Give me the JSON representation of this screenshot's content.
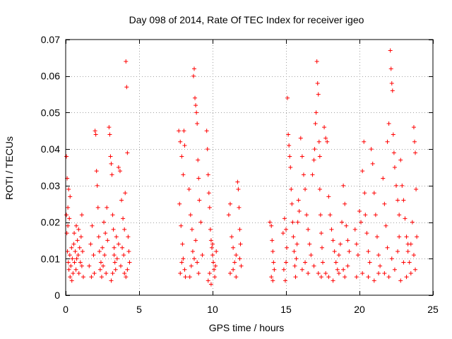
{
  "chart_data": {
    "type": "scatter",
    "title": "Day 098 of 2014, Rate Of TEC Index for receiver igeo",
    "xlabel": "GPS time / hours",
    "ylabel": "ROTI / TECUs",
    "xlim": [
      0,
      25
    ],
    "ylim": [
      0,
      0.07
    ],
    "x_ticks": [
      0,
      5,
      10,
      15,
      20,
      25
    ],
    "y_ticks": [
      0,
      0.01,
      0.02,
      0.03,
      0.04,
      0.05,
      0.06,
      0.07
    ],
    "grid": true,
    "marker": "+",
    "marker_color": "#ff0000",
    "series": [
      {
        "name": "ROTI",
        "points": [
          [
            0.05,
            0.038
          ],
          [
            0.1,
            0.032
          ],
          [
            0.15,
            0.024
          ],
          [
            0.2,
            0.029
          ],
          [
            0.25,
            0.021
          ],
          [
            0.3,
            0.027
          ],
          [
            0.08,
            0.017
          ],
          [
            0.12,
            0.012
          ],
          [
            0.18,
            0.009
          ],
          [
            0.22,
            0.007
          ],
          [
            0.28,
            0.011
          ],
          [
            0.35,
            0.008
          ],
          [
            0.4,
            0.013
          ],
          [
            0.45,
            0.01
          ],
          [
            0.5,
            0.006
          ],
          [
            0.55,
            0.014
          ],
          [
            0.6,
            0.009
          ],
          [
            0.65,
            0.012
          ],
          [
            0.7,
            0.007
          ],
          [
            0.75,
            0.01
          ],
          [
            0.8,
            0.015
          ],
          [
            0.85,
            0.011
          ],
          [
            0.9,
            0.006
          ],
          [
            0.95,
            0.013
          ],
          [
            1.0,
            0.009
          ],
          [
            1.05,
            0.016
          ],
          [
            1.1,
            0.008
          ],
          [
            1.15,
            0.012
          ],
          [
            1.2,
            0.005
          ],
          [
            0.3,
            0.005
          ],
          [
            0.42,
            0.004
          ],
          [
            0.58,
            0.017
          ],
          [
            0.72,
            0.019
          ],
          [
            0.88,
            0.018
          ],
          [
            1.1,
            0.022
          ],
          [
            0.05,
            0.022
          ],
          [
            0.15,
            0.019
          ],
          [
            1.6,
            0.008
          ],
          [
            1.7,
            0.014
          ],
          [
            1.8,
            0.019
          ],
          [
            1.9,
            0.011
          ],
          [
            2.0,
            0.045
          ],
          [
            2.05,
            0.044
          ],
          [
            2.1,
            0.034
          ],
          [
            2.15,
            0.03
          ],
          [
            2.2,
            0.024
          ],
          [
            2.25,
            0.016
          ],
          [
            2.3,
            0.012
          ],
          [
            2.35,
            0.007
          ],
          [
            2.4,
            0.009
          ],
          [
            2.5,
            0.013
          ],
          [
            2.6,
            0.02
          ],
          [
            2.7,
            0.017
          ],
          [
            2.8,
            0.024
          ],
          [
            1.75,
            0.005
          ],
          [
            1.95,
            0.006
          ],
          [
            2.45,
            0.005
          ],
          [
            2.55,
            0.008
          ],
          [
            2.65,
            0.011
          ],
          [
            2.75,
            0.006
          ],
          [
            2.85,
            0.015
          ],
          [
            2.95,
            0.046
          ],
          [
            3.0,
            0.044
          ],
          [
            3.05,
            0.038
          ],
          [
            3.1,
            0.036
          ],
          [
            3.15,
            0.033
          ],
          [
            3.2,
            0.022
          ],
          [
            3.25,
            0.018
          ],
          [
            3.3,
            0.013
          ],
          [
            3.35,
            0.009
          ],
          [
            3.4,
            0.007
          ],
          [
            3.5,
            0.01
          ],
          [
            3.6,
            0.014
          ],
          [
            3.1,
            0.004
          ],
          [
            3.2,
            0.006
          ],
          [
            3.3,
            0.011
          ],
          [
            3.45,
            0.016
          ],
          [
            3.6,
            0.035
          ],
          [
            3.7,
            0.034
          ],
          [
            3.8,
            0.026
          ],
          [
            3.9,
            0.021
          ],
          [
            4.0,
            0.018
          ],
          [
            4.05,
            0.028
          ],
          [
            4.1,
            0.064
          ],
          [
            4.15,
            0.057
          ],
          [
            4.2,
            0.039
          ],
          [
            4.25,
            0.016
          ],
          [
            4.3,
            0.012
          ],
          [
            4.35,
            0.009
          ],
          [
            3.75,
            0.008
          ],
          [
            3.85,
            0.013
          ],
          [
            3.95,
            0.011
          ],
          [
            4.0,
            0.006
          ],
          [
            4.1,
            0.005
          ],
          [
            4.2,
            0.007
          ],
          [
            7.7,
            0.045
          ],
          [
            7.8,
            0.042
          ],
          [
            7.9,
            0.038
          ],
          [
            8.0,
            0.033
          ],
          [
            8.05,
            0.045
          ],
          [
            8.1,
            0.041
          ],
          [
            7.75,
            0.025
          ],
          [
            7.85,
            0.019
          ],
          [
            7.95,
            0.014
          ],
          [
            8.0,
            0.01
          ],
          [
            8.1,
            0.007
          ],
          [
            8.15,
            0.005
          ],
          [
            7.8,
            0.006
          ],
          [
            7.9,
            0.009
          ],
          [
            8.4,
            0.029
          ],
          [
            8.5,
            0.022
          ],
          [
            8.6,
            0.018
          ],
          [
            8.7,
            0.06
          ],
          [
            8.75,
            0.062
          ],
          [
            8.8,
            0.054
          ],
          [
            8.85,
            0.052
          ],
          [
            8.9,
            0.05
          ],
          [
            8.95,
            0.047
          ],
          [
            9.0,
            0.037
          ],
          [
            9.05,
            0.032
          ],
          [
            8.55,
            0.008
          ],
          [
            8.65,
            0.012
          ],
          [
            8.75,
            0.01
          ],
          [
            8.85,
            0.015
          ],
          [
            8.95,
            0.009
          ],
          [
            9.05,
            0.006
          ],
          [
            8.45,
            0.005
          ],
          [
            9.1,
            0.026
          ],
          [
            9.2,
            0.02
          ],
          [
            9.3,
            0.011
          ],
          [
            9.6,
            0.045
          ],
          [
            9.65,
            0.04
          ],
          [
            9.7,
            0.033
          ],
          [
            9.75,
            0.028
          ],
          [
            9.8,
            0.024
          ],
          [
            9.85,
            0.018
          ],
          [
            9.9,
            0.015
          ],
          [
            9.95,
            0.013
          ],
          [
            10.0,
            0.011
          ],
          [
            10.05,
            0.009
          ],
          [
            10.1,
            0.007
          ],
          [
            10.15,
            0.005
          ],
          [
            9.7,
            0.004
          ],
          [
            9.8,
            0.006
          ],
          [
            10.0,
            0.014
          ],
          [
            10.2,
            0.008
          ],
          [
            10.25,
            0.012
          ],
          [
            9.9,
            0.003
          ],
          [
            11.1,
            0.022
          ],
          [
            11.2,
            0.025
          ],
          [
            11.3,
            0.016
          ],
          [
            11.4,
            0.013
          ],
          [
            11.5,
            0.009
          ],
          [
            11.6,
            0.011
          ],
          [
            11.7,
            0.031
          ],
          [
            11.75,
            0.029
          ],
          [
            11.8,
            0.024
          ],
          [
            11.85,
            0.018
          ],
          [
            11.9,
            0.014
          ],
          [
            11.95,
            0.008
          ],
          [
            11.2,
            0.006
          ],
          [
            11.4,
            0.007
          ],
          [
            11.6,
            0.005
          ],
          [
            11.85,
            0.01
          ],
          [
            13.9,
            0.02
          ],
          [
            14.0,
            0.019
          ],
          [
            14.05,
            0.015
          ],
          [
            14.1,
            0.012
          ],
          [
            14.15,
            0.009
          ],
          [
            14.2,
            0.007
          ],
          [
            14.0,
            0.005
          ],
          [
            14.1,
            0.004
          ],
          [
            14.8,
            0.017
          ],
          [
            14.9,
            0.021
          ],
          [
            15.0,
            0.018
          ],
          [
            15.05,
            0.013
          ],
          [
            15.1,
            0.054
          ],
          [
            15.15,
            0.044
          ],
          [
            15.2,
            0.041
          ],
          [
            15.25,
            0.038
          ],
          [
            15.3,
            0.035
          ],
          [
            15.35,
            0.029
          ],
          [
            15.4,
            0.025
          ],
          [
            15.45,
            0.02
          ],
          [
            15.5,
            0.016
          ],
          [
            15.55,
            0.012
          ],
          [
            15.6,
            0.008
          ],
          [
            15.65,
            0.005
          ],
          [
            15.7,
            0.01
          ],
          [
            14.85,
            0.007
          ],
          [
            14.95,
            0.004
          ],
          [
            15.0,
            0.009
          ],
          [
            15.75,
            0.014
          ],
          [
            15.8,
            0.02
          ],
          [
            15.85,
            0.026
          ],
          [
            15.9,
            0.023
          ],
          [
            16.0,
            0.043
          ],
          [
            16.1,
            0.038
          ],
          [
            16.2,
            0.033
          ],
          [
            16.3,
            0.029
          ],
          [
            16.4,
            0.022
          ],
          [
            16.5,
            0.018
          ],
          [
            16.6,
            0.014
          ],
          [
            16.7,
            0.011
          ],
          [
            16.8,
            0.033
          ],
          [
            16.9,
            0.037
          ],
          [
            16.95,
            0.04
          ],
          [
            17.0,
            0.047
          ],
          [
            17.05,
            0.05
          ],
          [
            17.1,
            0.064
          ],
          [
            17.15,
            0.058
          ],
          [
            17.2,
            0.055
          ],
          [
            17.25,
            0.042
          ],
          [
            17.3,
            0.029
          ],
          [
            17.35,
            0.022
          ],
          [
            17.4,
            0.017
          ],
          [
            17.45,
            0.013
          ],
          [
            17.5,
            0.009
          ],
          [
            16.1,
            0.007
          ],
          [
            16.3,
            0.009
          ],
          [
            16.5,
            0.006
          ],
          [
            16.9,
            0.008
          ],
          [
            17.2,
            0.006
          ],
          [
            17.4,
            0.005
          ],
          [
            17.3,
            0.038
          ],
          [
            17.6,
            0.046
          ],
          [
            17.7,
            0.043
          ],
          [
            17.8,
            0.042
          ],
          [
            17.9,
            0.027
          ],
          [
            18.0,
            0.022
          ],
          [
            18.1,
            0.018
          ],
          [
            18.2,
            0.015
          ],
          [
            18.3,
            0.012
          ],
          [
            18.4,
            0.009
          ],
          [
            18.5,
            0.007
          ],
          [
            18.6,
            0.011
          ],
          [
            18.7,
            0.014
          ],
          [
            18.8,
            0.02
          ],
          [
            18.9,
            0.03
          ],
          [
            19.0,
            0.025
          ],
          [
            19.1,
            0.019
          ],
          [
            19.2,
            0.015
          ],
          [
            17.7,
            0.006
          ],
          [
            17.9,
            0.005
          ],
          [
            18.2,
            0.004
          ],
          [
            18.6,
            0.006
          ],
          [
            18.9,
            0.007
          ],
          [
            19.0,
            0.005
          ],
          [
            19.2,
            0.008
          ],
          [
            19.3,
            0.012
          ],
          [
            19.7,
            0.018
          ],
          [
            19.8,
            0.014
          ],
          [
            19.9,
            0.011
          ],
          [
            20.0,
            0.023
          ],
          [
            20.1,
            0.02
          ],
          [
            20.2,
            0.034
          ],
          [
            20.3,
            0.042
          ],
          [
            20.35,
            0.028
          ],
          [
            20.4,
            0.022
          ],
          [
            20.5,
            0.017
          ],
          [
            20.6,
            0.012
          ],
          [
            20.7,
            0.009
          ],
          [
            20.8,
            0.04
          ],
          [
            20.9,
            0.036
          ],
          [
            21.0,
            0.028
          ],
          [
            21.1,
            0.022
          ],
          [
            21.2,
            0.016
          ],
          [
            21.3,
            0.011
          ],
          [
            21.4,
            0.008
          ],
          [
            19.8,
            0.005
          ],
          [
            20.2,
            0.006
          ],
          [
            20.6,
            0.005
          ],
          [
            21.0,
            0.004
          ],
          [
            21.3,
            0.006
          ],
          [
            21.6,
            0.032
          ],
          [
            21.7,
            0.025
          ],
          [
            21.8,
            0.019
          ],
          [
            21.9,
            0.042
          ],
          [
            22.0,
            0.047
          ],
          [
            22.1,
            0.067
          ],
          [
            22.15,
            0.062
          ],
          [
            22.2,
            0.058
          ],
          [
            22.25,
            0.056
          ],
          [
            22.3,
            0.044
          ],
          [
            22.35,
            0.039
          ],
          [
            22.4,
            0.035
          ],
          [
            22.5,
            0.03
          ],
          [
            22.6,
            0.026
          ],
          [
            22.7,
            0.022
          ],
          [
            22.8,
            0.037
          ],
          [
            22.9,
            0.03
          ],
          [
            23.0,
            0.026
          ],
          [
            23.1,
            0.021
          ],
          [
            23.2,
            0.016
          ],
          [
            23.3,
            0.012
          ],
          [
            23.4,
            0.009
          ],
          [
            23.5,
            0.014
          ],
          [
            23.6,
            0.02
          ],
          [
            23.7,
            0.046
          ],
          [
            23.75,
            0.042
          ],
          [
            23.8,
            0.039
          ],
          [
            23.85,
            0.029
          ],
          [
            23.9,
            0.016
          ],
          [
            21.7,
            0.006
          ],
          [
            22.0,
            0.005
          ],
          [
            22.4,
            0.007
          ],
          [
            22.8,
            0.004
          ],
          [
            23.2,
            0.005
          ],
          [
            23.5,
            0.006
          ],
          [
            23.8,
            0.007
          ],
          [
            22.6,
            0.012
          ],
          [
            23.0,
            0.009
          ],
          [
            23.3,
            0.014
          ],
          [
            23.7,
            0.011
          ],
          [
            22.2,
            0.01
          ],
          [
            21.9,
            0.013
          ],
          [
            22.7,
            0.016
          ]
        ]
      }
    ]
  }
}
